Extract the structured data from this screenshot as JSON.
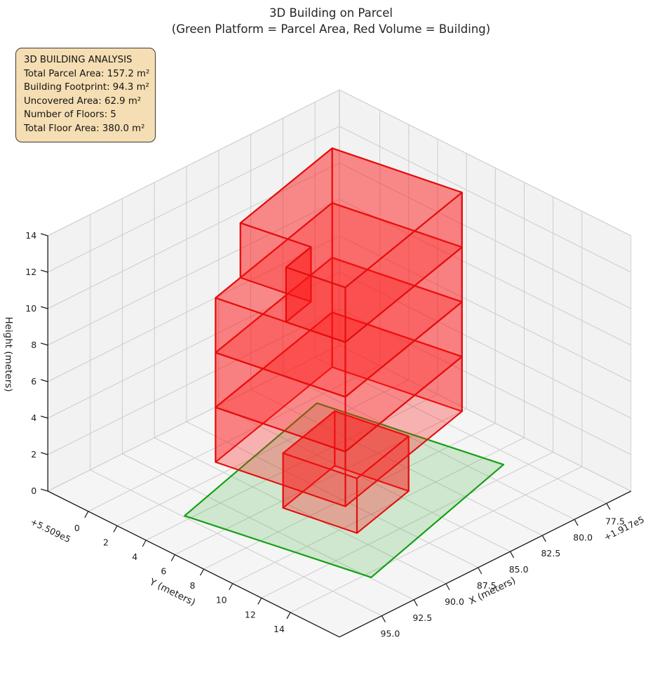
{
  "title": {
    "line1": "3D Building on Parcel",
    "line2": "(Green Platform = Parcel Area, Red Volume = Building)"
  },
  "info_box": {
    "title": "3D BUILDING ANALYSIS",
    "lines": [
      "Total Parcel Area: 157.2 m²",
      "Building Footprint: 94.3 m²",
      "Uncovered Area: 62.9 m²",
      "Number of Floors: 5",
      "Total Floor Area: 380.0 m²"
    ]
  },
  "chart_data": {
    "type": "3d-building-plot",
    "title": "3D Building on Parcel",
    "subtitle": "(Green Platform = Parcel Area, Red Volume = Building)",
    "stats": {
      "total_parcel_area_m2": 157.2,
      "building_footprint_m2": 94.3,
      "uncovered_area_m2": 62.9,
      "number_of_floors": 5,
      "total_floor_area_m2": 380.0
    },
    "view": {
      "elev": 30,
      "azim": 45,
      "projection": "ortho-approx"
    },
    "axes": {
      "x": {
        "label": "X (meters)",
        "offset_text": "+1.917e5",
        "lim": [
          191775.6,
          191798.3
        ],
        "tick_values": [
          191777.5,
          191780.0,
          191782.5,
          191785.0,
          191787.5,
          191790.0,
          191792.5,
          191795.0
        ],
        "tick_labels": [
          "77.5",
          "80.0",
          "82.5",
          "85.0",
          "87.5",
          "90.0",
          "92.5",
          "95.0"
        ]
      },
      "y": {
        "label": "Y (meters)",
        "offset_text": "+5.509e5",
        "lim": [
          550897.2,
          550917.4
        ],
        "tick_values": [
          550900,
          550902,
          550904,
          550906,
          550908,
          550910,
          550912,
          550914
        ],
        "tick_labels": [
          "0",
          "2",
          "4",
          "6",
          "8",
          "10",
          "12",
          "14"
        ]
      },
      "z": {
        "label": "Height (meters)",
        "lim": [
          0,
          15
        ],
        "tick_values": [
          0,
          2,
          4,
          6,
          8,
          10,
          12,
          14
        ],
        "tick_labels": [
          "0",
          "2",
          "4",
          "6",
          "8",
          "10",
          "12",
          "14"
        ]
      }
    },
    "parcel": {
      "polygon": [
        [
          191780.98,
          550900.43
        ],
        [
          191794.9,
          550903.65
        ],
        [
          191792.42,
          550914.37
        ],
        [
          191778.5,
          550911.15
        ]
      ],
      "z": 0
    },
    "building": {
      "footprints": {
        "ground": [
          [
            191785.17,
            550905.39
          ],
          [
            191790.45,
            550906.51
          ],
          [
            191789.53,
            550910.81
          ],
          [
            191784.25,
            550909.69
          ]
        ],
        "main": [
          [
            191781.84,
            550902.25
          ],
          [
            191793.77,
            550904.79
          ],
          [
            191792.16,
            550912.35
          ],
          [
            191780.23,
            550909.81
          ]
        ],
        "top": [
          [
            191781.84,
            550902.25
          ],
          [
            191791.23,
            550904.25
          ],
          [
            191790.35,
            550908.36
          ],
          [
            191792.9,
            550908.9
          ],
          [
            191792.16,
            550912.35
          ],
          [
            191780.23,
            550909.81
          ]
        ]
      },
      "floors": [
        {
          "footprint": "ground",
          "z0": 0,
          "z1": 3
        },
        {
          "footprint": "main",
          "z0": 3,
          "z1": 6
        },
        {
          "footprint": "main",
          "z0": 6,
          "z1": 9
        },
        {
          "footprint": "main",
          "z0": 9,
          "z1": 12
        },
        {
          "footprint": "top",
          "z0": 12,
          "z1": 15
        }
      ]
    },
    "colors": {
      "building_edge": "#e50d0d",
      "building_face": "#ff1414",
      "parcel_edge": "#14a014",
      "parcel_face": "#0f9c0f",
      "pane": "#f2f2f2",
      "grid": "#cccccc",
      "pane_edge": "#d6d6d6",
      "spine": "#1a1a1a",
      "info_box_bg": "#f5deb3"
    }
  }
}
